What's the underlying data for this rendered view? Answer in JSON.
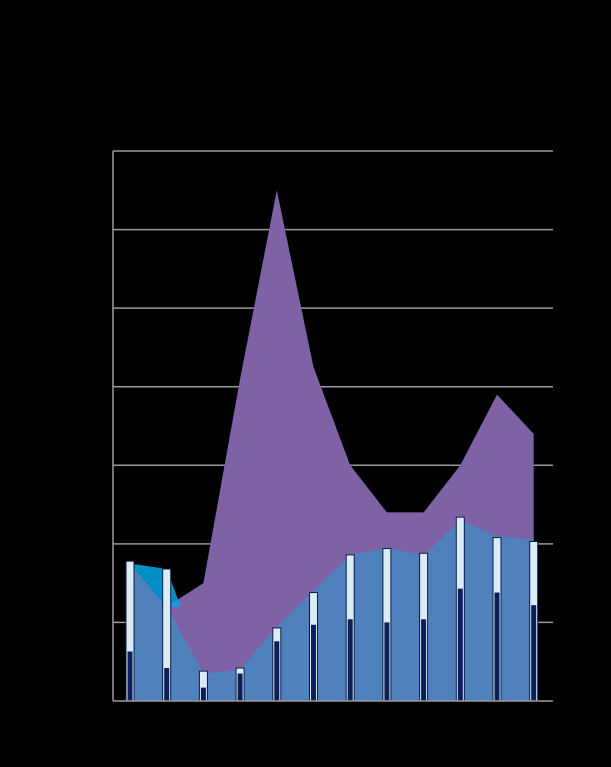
{
  "chart_data": {
    "type": "area",
    "title": "",
    "xlabel": "",
    "ylabel": "",
    "grid": true,
    "ylim": [
      0,
      7
    ],
    "x": [
      1,
      2,
      3,
      4,
      5,
      6,
      7,
      8,
      9,
      10,
      11,
      12
    ],
    "series": [
      {
        "kind": "area",
        "values": [
          1.75,
          1.2,
          1.5,
          4.1,
          6.5,
          4.25,
          3.0,
          2.4,
          2.4,
          3.0,
          3.9,
          3.4
        ]
      },
      {
        "kind": "area",
        "values": [
          1.75,
          1.2,
          0.35,
          0.4,
          0.95,
          1.4,
          1.85,
          1.95,
          1.85,
          2.3,
          2.1,
          2.05
        ]
      },
      {
        "kind": "bar",
        "values": [
          1.78,
          1.68,
          0.38,
          0.42,
          0.93,
          1.38,
          1.86,
          1.94,
          1.88,
          2.34,
          2.08,
          2.03
        ]
      },
      {
        "kind": "bar",
        "values": [
          0.63,
          0.42,
          0.17,
          0.35,
          0.76,
          0.97,
          1.04,
          1.0,
          1.04,
          1.43,
          1.38,
          1.22
        ]
      }
    ],
    "colors": {
      "background": "#000000",
      "grid": "#9a9a9a",
      "area_top": "#7f62a6",
      "area_bottom": "#4f81bd",
      "bar_outer": "#dcecf6",
      "bar_inner": "#0c1f5c",
      "accent": "#00a8e6"
    }
  }
}
